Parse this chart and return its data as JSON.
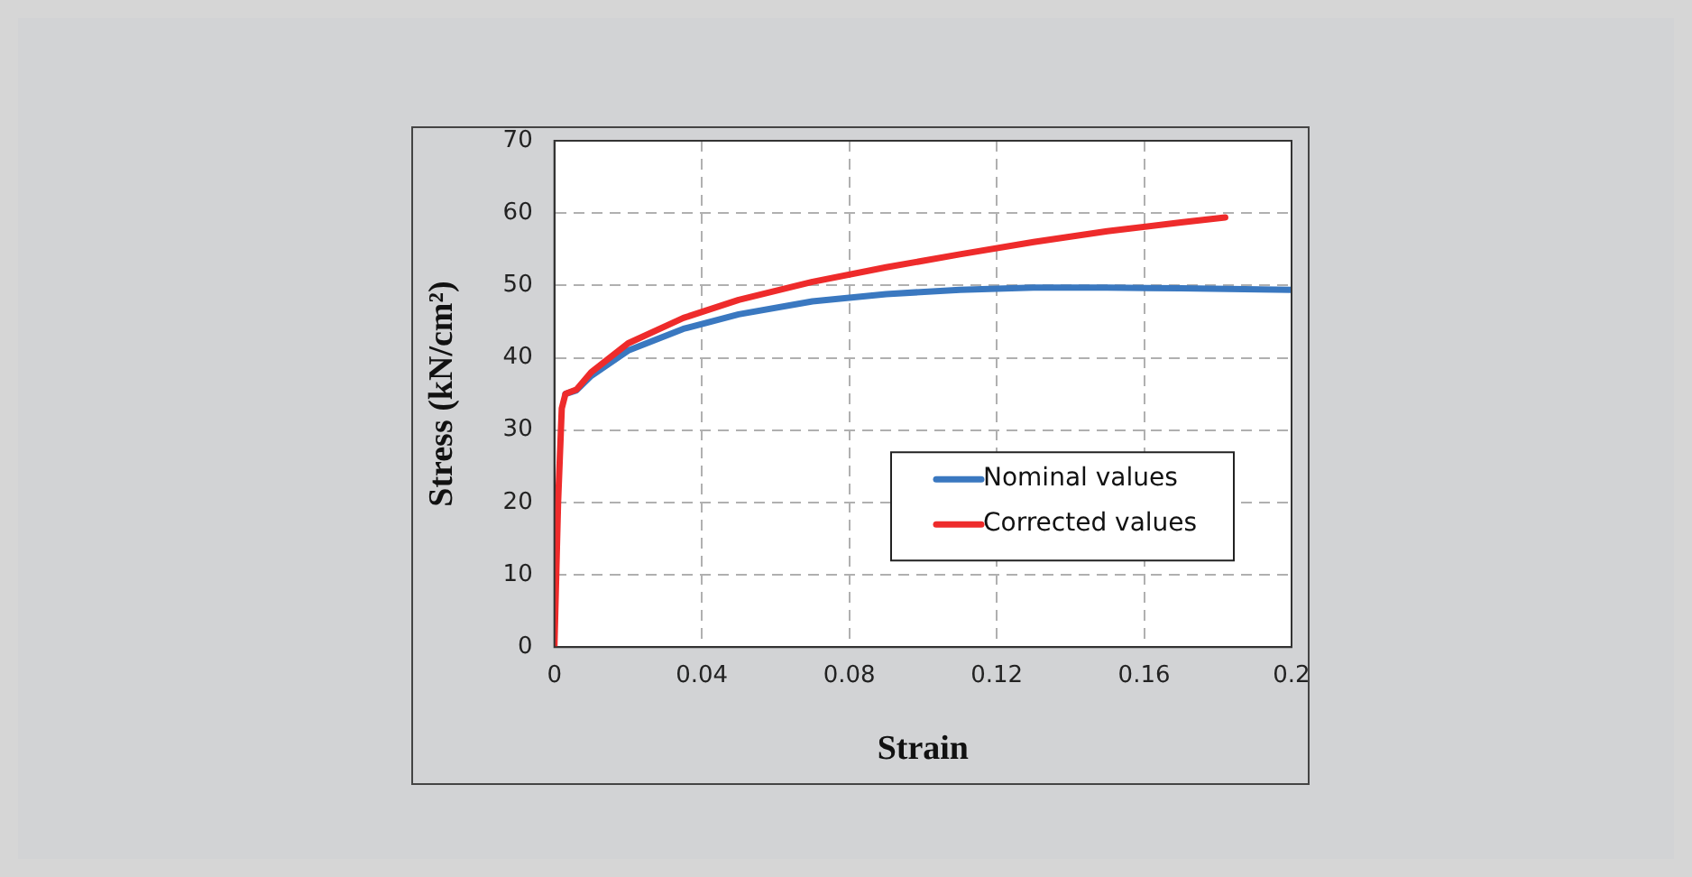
{
  "chart_data": {
    "type": "line",
    "xlabel": "Strain",
    "ylabel": "Stress (kN/cm²)",
    "xlim": [
      0,
      0.2
    ],
    "xticks": [
      0,
      0.04,
      0.08,
      0.12,
      0.16,
      0.2
    ],
    "ylim": [
      0,
      70
    ],
    "yticks": [
      0,
      10,
      20,
      30,
      40,
      50,
      60,
      70
    ],
    "grid": true,
    "legend": "bottom right",
    "marker": "none",
    "line_style": "solid",
    "series": [
      {
        "name": "Nominal values",
        "color": "#3a78c0",
        "x": [
          0.003,
          0.006,
          0.01,
          0.02,
          0.035,
          0.05,
          0.07,
          0.09,
          0.11,
          0.13,
          0.15,
          0.17,
          0.2
        ],
        "values": [
          35,
          35.5,
          37.5,
          41,
          44,
          46,
          47.8,
          48.8,
          49.4,
          49.7,
          49.7,
          49.6,
          49.4
        ]
      },
      {
        "name": "Corrected values",
        "color": "#ee2b2b",
        "x": [
          0,
          0.001,
          0.002,
          0.003,
          0.006,
          0.01,
          0.02,
          0.035,
          0.05,
          0.07,
          0.09,
          0.11,
          0.13,
          0.15,
          0.17,
          0.182
        ],
        "values": [
          0,
          20,
          33,
          35,
          35.6,
          38,
          42,
          45.5,
          48,
          50.5,
          52.5,
          54.3,
          56,
          57.5,
          58.7,
          59.4
        ]
      }
    ]
  }
}
